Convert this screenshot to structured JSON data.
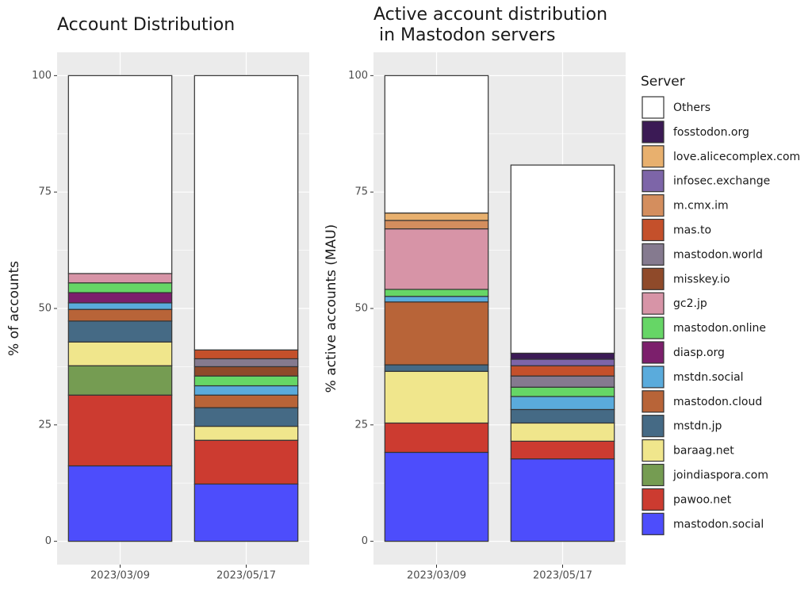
{
  "chart_data": [
    {
      "type": "stacked-bar",
      "title": [
        "Account Distribution"
      ],
      "y_label": "% of accounts",
      "categories": [
        "2023/03/09",
        "2023/05/17"
      ],
      "ylim": [
        -5,
        105
      ],
      "yticks": [
        0,
        25,
        50,
        75,
        100
      ],
      "grid": true,
      "series": [
        {
          "name": "mastodon.social",
          "color": "#4d4dfc",
          "values": [
            16.2,
            12.3
          ]
        },
        {
          "name": "pawoo.net",
          "color": "#cc3b30",
          "values": [
            15.2,
            9.4
          ]
        },
        {
          "name": "joindiaspora.com",
          "color": "#759c52",
          "values": [
            6.3,
            0
          ]
        },
        {
          "name": "baraag.net",
          "color": "#f0e68c",
          "values": [
            5.1,
            3.0
          ]
        },
        {
          "name": "mstdn.jp",
          "color": "#456a85",
          "values": [
            4.5,
            4.0
          ]
        },
        {
          "name": "mastodon.cloud",
          "color": "#b86438",
          "values": [
            2.5,
            2.7
          ]
        },
        {
          "name": "mstdn.social",
          "color": "#5aabdc",
          "values": [
            1.4,
            2.0
          ]
        },
        {
          "name": "diasp.org",
          "color": "#7c1f6c",
          "values": [
            2.2,
            0
          ]
        },
        {
          "name": "mastodon.online",
          "color": "#66d666",
          "values": [
            2.1,
            2.1
          ]
        },
        {
          "name": "gc2.jp",
          "color": "#d794a7",
          "values": [
            2.0,
            0
          ]
        },
        {
          "name": "misskey.io",
          "color": "#8f4a2a",
          "values": [
            0,
            2.0
          ]
        },
        {
          "name": "mastodon.world",
          "color": "#857a8f",
          "values": [
            0,
            1.7
          ]
        },
        {
          "name": "mas.to",
          "color": "#c4502b",
          "values": [
            0,
            1.9
          ]
        },
        {
          "name": "m.cmx.im",
          "color": "#d48e5e",
          "values": [
            0,
            0
          ]
        },
        {
          "name": "infosec.exchange",
          "color": "#7d65a8",
          "values": [
            0,
            0
          ]
        },
        {
          "name": "love.alicecomplex.com",
          "color": "#e8b06e",
          "values": [
            0,
            0
          ]
        },
        {
          "name": "fosstodon.org",
          "color": "#3b1a55",
          "values": [
            0,
            0
          ]
        },
        {
          "name": "Others",
          "color": "#ffffff",
          "values": [
            42.5,
            58.9
          ]
        }
      ]
    },
    {
      "type": "stacked-bar",
      "title": [
        "Active account distribution",
        " in Mastodon servers"
      ],
      "y_label": "% active accounts (MAU)",
      "categories": [
        "2023/03/09",
        "2023/05/17"
      ],
      "ylim": [
        -5,
        105
      ],
      "yticks": [
        0,
        25,
        50,
        75,
        100
      ],
      "grid": true,
      "legend_title": "Server",
      "legend": "right",
      "series": [
        {
          "name": "mastodon.social",
          "color": "#4d4dfc",
          "values": [
            19.1,
            17.7
          ]
        },
        {
          "name": "pawoo.net",
          "color": "#cc3b30",
          "values": [
            6.3,
            3.8
          ]
        },
        {
          "name": "joindiaspora.com",
          "color": "#759c52",
          "values": [
            0,
            0
          ]
        },
        {
          "name": "baraag.net",
          "color": "#f0e68c",
          "values": [
            11.1,
            3.9
          ]
        },
        {
          "name": "mstdn.jp",
          "color": "#456a85",
          "values": [
            1.4,
            2.9
          ]
        },
        {
          "name": "mastodon.cloud",
          "color": "#b86438",
          "values": [
            13.5,
            0
          ]
        },
        {
          "name": "mstdn.social",
          "color": "#5aabdc",
          "values": [
            1.2,
            2.8
          ]
        },
        {
          "name": "diasp.org",
          "color": "#7c1f6c",
          "values": [
            0,
            0
          ]
        },
        {
          "name": "mastodon.online",
          "color": "#66d666",
          "values": [
            1.5,
            2.0
          ]
        },
        {
          "name": "gc2.jp",
          "color": "#d794a7",
          "values": [
            13.0,
            0
          ]
        },
        {
          "name": "misskey.io",
          "color": "#8f4a2a",
          "values": [
            0,
            0
          ]
        },
        {
          "name": "mastodon.world",
          "color": "#857a8f",
          "values": [
            0,
            2.4
          ]
        },
        {
          "name": "mas.to",
          "color": "#c4502b",
          "values": [
            0,
            2.2
          ]
        },
        {
          "name": "m.cmx.im",
          "color": "#d48e5e",
          "values": [
            1.8,
            0
          ]
        },
        {
          "name": "infosec.exchange",
          "color": "#7d65a8",
          "values": [
            0,
            1.4
          ]
        },
        {
          "name": "love.alicecomplex.com",
          "color": "#e8b06e",
          "values": [
            1.6,
            0
          ]
        },
        {
          "name": "fosstodon.org",
          "color": "#3b1a55",
          "values": [
            0,
            1.3
          ]
        },
        {
          "name": "Others",
          "color": "#ffffff",
          "values": [
            29.5,
            40.4
          ]
        }
      ]
    }
  ]
}
